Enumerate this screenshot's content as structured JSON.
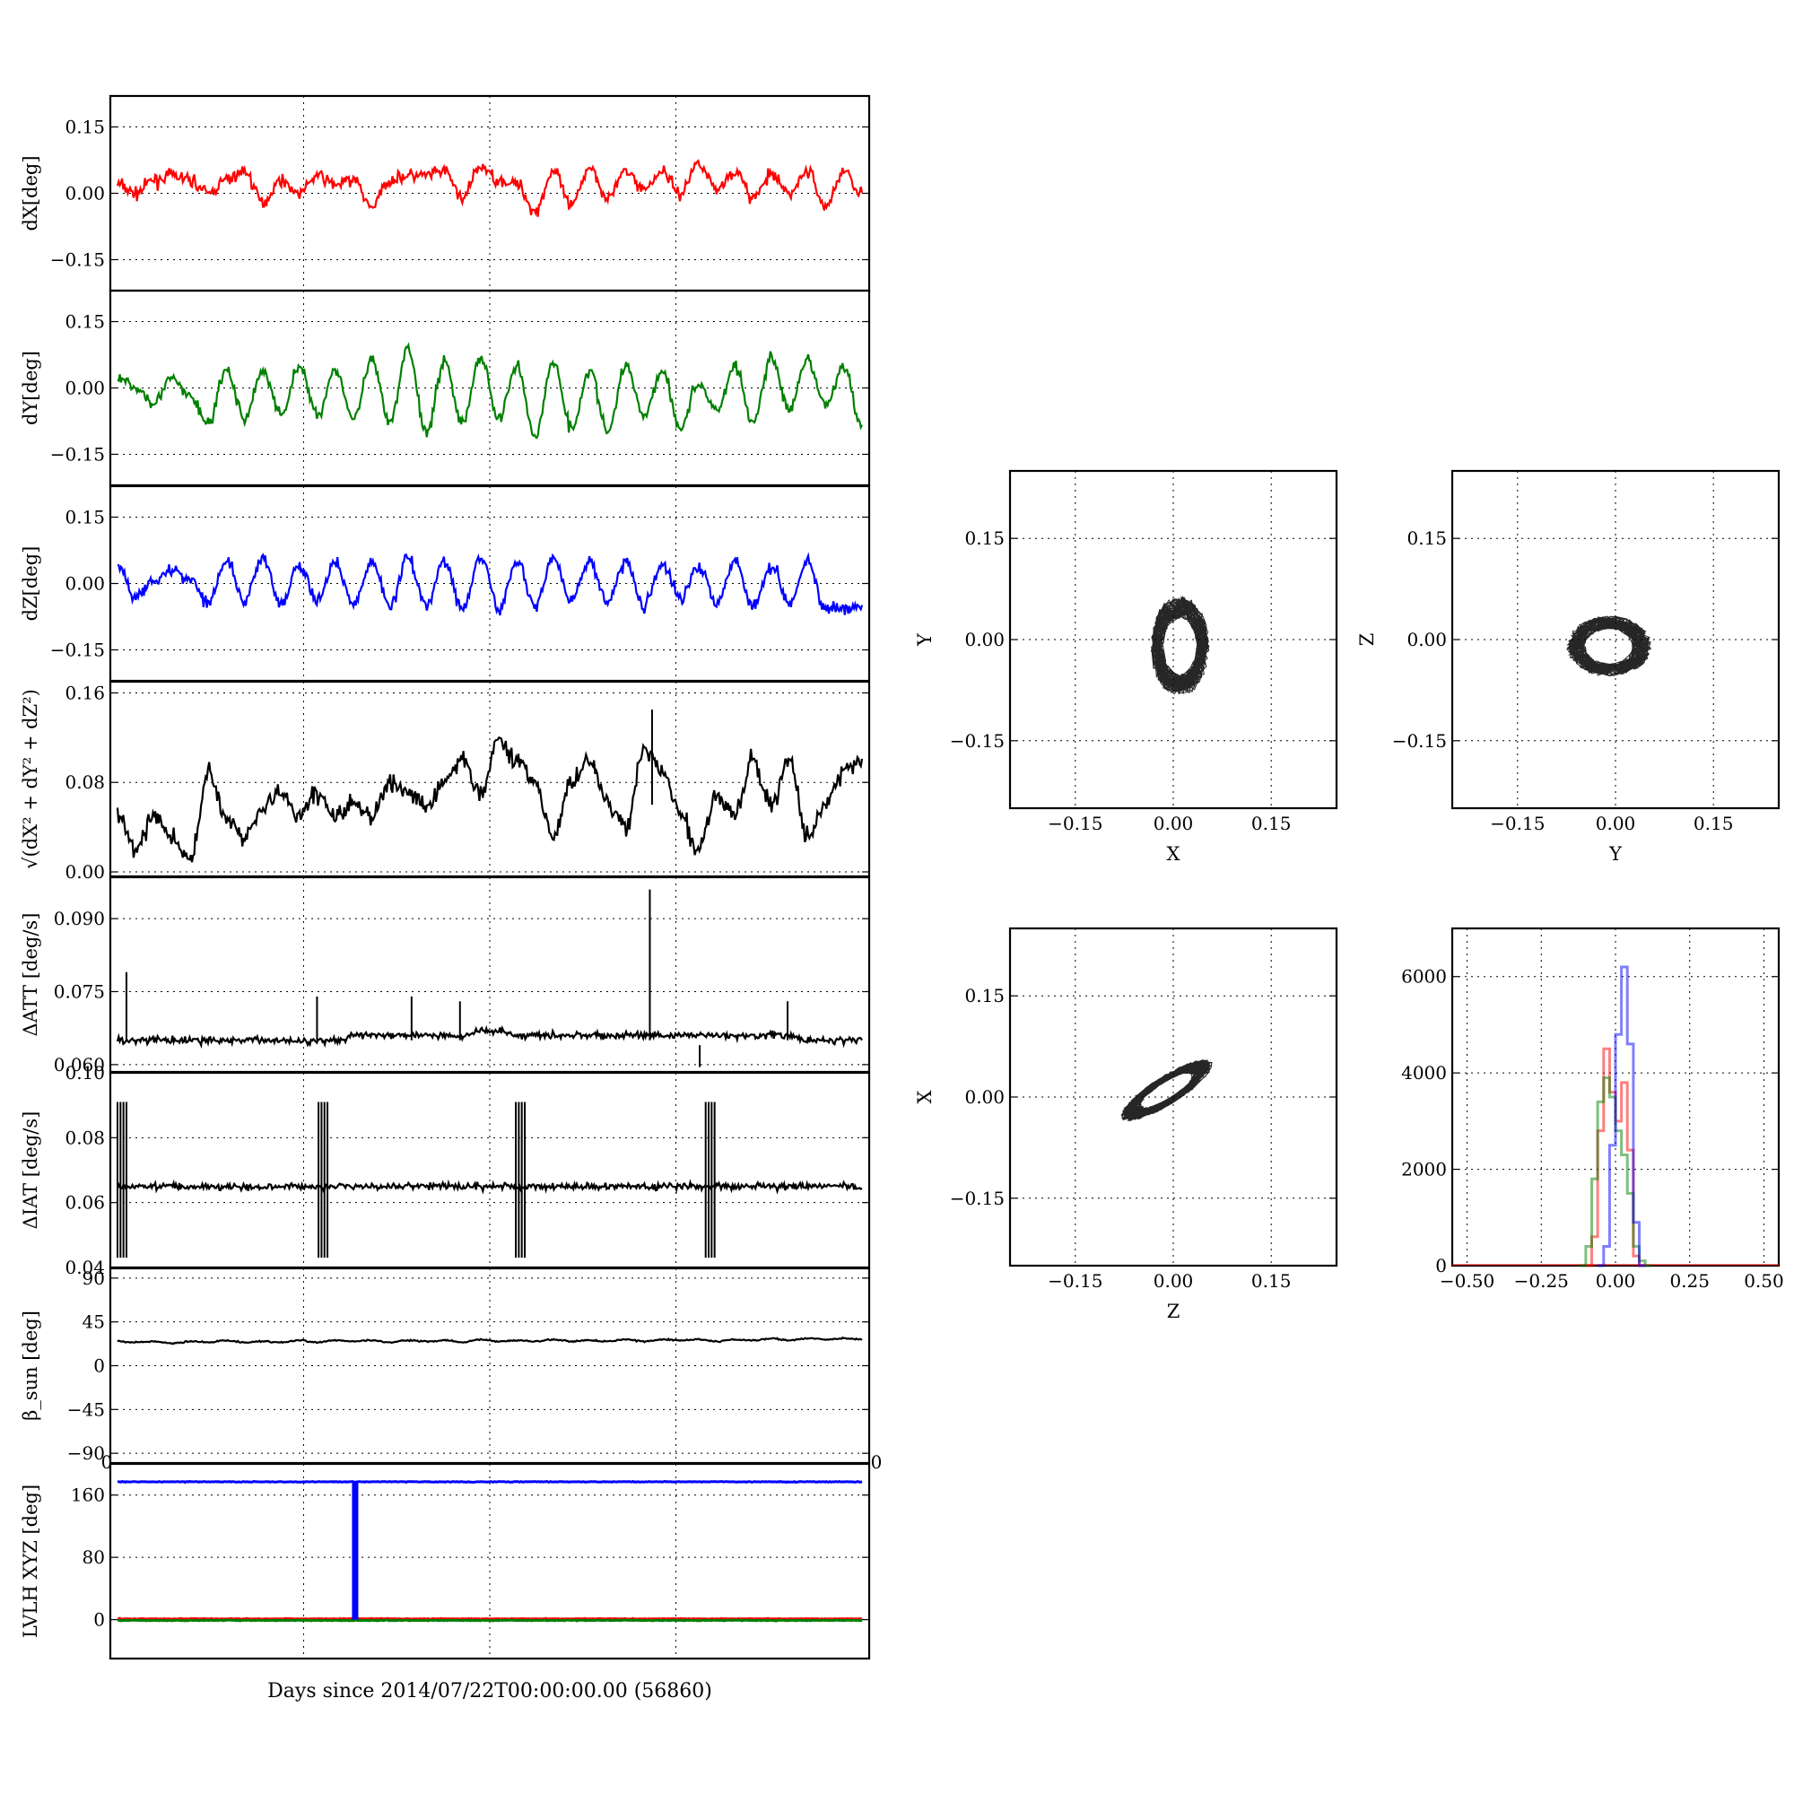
{
  "figure": {
    "xlabel": "Days since 2014/07/22T00:00:00.00 (56860)"
  },
  "chart_data": [
    {
      "id": "dx",
      "type": "line",
      "ylabel": "dX[deg]",
      "color": "#ff0000",
      "xlim": [
        0,
        1
      ],
      "ylim": [
        -0.22,
        0.22
      ],
      "yticks": [
        0.15,
        0.0,
        -0.15
      ],
      "ytick_labels": [
        "0.15",
        "0.00",
        "−0.15"
      ],
      "series": [
        {
          "values": [
            0.02,
            0.0,
            0.03,
            0.04,
            0.03,
            0.0,
            0.03,
            0.05,
            -0.02,
            0.03,
            0.0,
            0.04,
            0.02,
            0.03,
            -0.03,
            0.03,
            0.04,
            0.04,
            0.05,
            -0.01,
            0.06,
            0.03,
            0.02,
            -0.04,
            0.05,
            -0.03,
            0.06,
            -0.01,
            0.05,
            0.01,
            0.05,
            0.0,
            0.07,
            0.01,
            0.05,
            -0.01,
            0.04,
            0.0,
            0.05,
            -0.03,
            0.05,
            0.0
          ]
        }
      ]
    },
    {
      "id": "dy",
      "type": "line",
      "ylabel": "dY[deg]",
      "color": "#008000",
      "xlim": [
        0,
        1
      ],
      "ylim": [
        -0.22,
        0.22
      ],
      "yticks": [
        0.15,
        0.0,
        -0.15
      ],
      "ytick_labels": [
        "0.15",
        "0.00",
        "−0.15"
      ],
      "series": [
        {
          "values": [
            0.02,
            0.0,
            -0.03,
            0.02,
            -0.02,
            -0.08,
            0.04,
            -0.07,
            0.04,
            -0.06,
            0.05,
            -0.06,
            0.04,
            -0.07,
            0.06,
            -0.08,
            0.09,
            -0.1,
            0.06,
            -0.08,
            0.07,
            -0.07,
            0.05,
            -0.11,
            0.06,
            -0.09,
            0.04,
            -0.1,
            0.05,
            -0.06,
            0.04,
            -0.09,
            0.01,
            -0.05,
            0.05,
            -0.08,
            0.07,
            -0.05,
            0.06,
            -0.04,
            0.05,
            -0.09
          ]
        }
      ]
    },
    {
      "id": "dz",
      "type": "line",
      "ylabel": "dZ[deg]",
      "color": "#0000ff",
      "xlim": [
        0,
        1
      ],
      "ylim": [
        -0.22,
        0.22
      ],
      "yticks": [
        0.15,
        0.0,
        -0.15
      ],
      "ytick_labels": [
        "0.15",
        "0.00",
        "−0.15"
      ],
      "series": [
        {
          "values": [
            0.04,
            -0.03,
            0.01,
            0.03,
            0.01,
            -0.04,
            0.05,
            -0.04,
            0.06,
            -0.05,
            0.04,
            -0.04,
            0.05,
            -0.05,
            0.05,
            -0.05,
            0.06,
            -0.05,
            0.05,
            -0.06,
            0.06,
            -0.06,
            0.05,
            -0.05,
            0.06,
            -0.04,
            0.05,
            -0.04,
            0.05,
            -0.05,
            0.04,
            -0.03,
            0.04,
            -0.04,
            0.05,
            -0.05,
            0.04,
            -0.04,
            0.05,
            -0.06,
            -0.06,
            -0.05
          ]
        }
      ]
    },
    {
      "id": "rss",
      "type": "line",
      "ylabel": "√(dX² + dY² + dZ²)",
      "color": "#000000",
      "xlim": [
        0,
        1
      ],
      "ylim": [
        -0.004,
        0.17
      ],
      "yticks": [
        0.16,
        0.08,
        0.0
      ],
      "ytick_labels": [
        "0.16",
        "0.08",
        "0.00"
      ],
      "series": [
        {
          "values": [
            0.05,
            0.02,
            0.05,
            0.03,
            0.01,
            0.09,
            0.05,
            0.03,
            0.06,
            0.07,
            0.05,
            0.07,
            0.05,
            0.06,
            0.05,
            0.08,
            0.07,
            0.06,
            0.08,
            0.1,
            0.07,
            0.12,
            0.1,
            0.08,
            0.03,
            0.08,
            0.1,
            0.06,
            0.04,
            0.11,
            0.09,
            0.05,
            0.02,
            0.07,
            0.05,
            0.1,
            0.06,
            0.1,
            0.03,
            0.06,
            0.09,
            0.1
          ]
        }
      ]
    },
    {
      "id": "datt",
      "type": "line",
      "ylabel": "ΔATT [deg/s]",
      "color": "#000000",
      "xlim": [
        0,
        1
      ],
      "ylim": [
        0.0585,
        0.0985
      ],
      "yticks": [
        0.09,
        0.075,
        0.06
      ],
      "ytick_labels": [
        "0.090",
        "0.075",
        "0.060"
      ],
      "series": [
        {
          "values": [
            0.065,
            0.065,
            0.065,
            0.065,
            0.065,
            0.065,
            0.065,
            0.065,
            0.065,
            0.065,
            0.065,
            0.065,
            0.065,
            0.066,
            0.066,
            0.066,
            0.066,
            0.066,
            0.066,
            0.066,
            0.067,
            0.067,
            0.066,
            0.066,
            0.066,
            0.066,
            0.066,
            0.066,
            0.066,
            0.066,
            0.066,
            0.066,
            0.066,
            0.066,
            0.066,
            0.066,
            0.066,
            0.066,
            0.065,
            0.065,
            0.065,
            0.065
          ]
        }
      ]
    },
    {
      "id": "diat",
      "type": "line",
      "ylabel": "ΔIAT [deg/s]",
      "color": "#000000",
      "xlim": [
        0,
        1
      ],
      "ylim": [
        0.04,
        0.1
      ],
      "yticks": [
        0.1,
        0.08,
        0.06,
        0.04
      ],
      "ytick_labels": [
        "0.10",
        "0.08",
        "0.06",
        "0.04"
      ],
      "series": [
        {
          "values": [
            0.065,
            0.065,
            0.065,
            0.065,
            0.065,
            0.065,
            0.065,
            0.065,
            0.065,
            0.065,
            0.065,
            0.065,
            0.065,
            0.065,
            0.065,
            0.065,
            0.065,
            0.065,
            0.065,
            0.065,
            0.065,
            0.065,
            0.065,
            0.065,
            0.065,
            0.065,
            0.065,
            0.065,
            0.065,
            0.065,
            0.065,
            0.065,
            0.065,
            0.065,
            0.065,
            0.065,
            0.065,
            0.065,
            0.065,
            0.065,
            0.065,
            0.065
          ]
        }
      ]
    },
    {
      "id": "beta",
      "type": "line",
      "ylabel": "β_sun [deg]",
      "color": "#000000",
      "xlim": [
        0,
        1
      ],
      "ylim": [
        -100,
        100
      ],
      "yticks": [
        90,
        45,
        0,
        -45,
        -90
      ],
      "ytick_labels": [
        "90",
        "45",
        "0",
        "−45",
        "−90"
      ],
      "series": [
        {
          "values": [
            25,
            24,
            25,
            23,
            25,
            24,
            26,
            24,
            25,
            24,
            26,
            24,
            26,
            25,
            26,
            24,
            26,
            25,
            26,
            24,
            27,
            25,
            26,
            25,
            27,
            25,
            26,
            25,
            27,
            25,
            27,
            26,
            27,
            25,
            27,
            26,
            28,
            26,
            28,
            27,
            28,
            27
          ]
        }
      ]
    },
    {
      "id": "lvlh",
      "type": "line",
      "ylabel": "LVLH XYZ [deg]",
      "color": "#000000",
      "xlim": [
        0,
        1
      ],
      "ylim": [
        -50,
        200
      ],
      "yticks": [
        160,
        80,
        0
      ],
      "ytick_labels": [
        "160",
        "80",
        "0"
      ],
      "xtick_labels": [
        "0",
        "0"
      ],
      "series": [
        {
          "color": "#0000ff",
          "values": [
            177,
            177,
            177,
            177,
            177,
            177,
            177,
            177,
            177,
            177,
            177,
            177,
            177,
            177,
            177,
            177,
            177,
            177,
            177,
            177,
            177,
            177,
            177,
            177,
            177,
            177,
            177,
            177,
            177,
            177,
            177,
            177,
            177,
            177,
            177,
            177,
            177,
            177,
            177,
            177,
            177,
            177
          ]
        },
        {
          "color": "#ff0000",
          "values": [
            1,
            1,
            1,
            1,
            1,
            1,
            1,
            1,
            1,
            1,
            1,
            1,
            1,
            1,
            1,
            1,
            1,
            1,
            1,
            1,
            1,
            1,
            1,
            1,
            1,
            1,
            1,
            1,
            1,
            1,
            1,
            1,
            1,
            1,
            1,
            1,
            1,
            1,
            1,
            1,
            1,
            1
          ]
        },
        {
          "color": "#008000",
          "values": [
            -1,
            -1,
            -1,
            -1,
            -1,
            -1,
            -1,
            -1,
            -1,
            -1,
            -1,
            -1,
            -1,
            -1,
            -1,
            -1,
            -1,
            -1,
            -1,
            -1,
            -1,
            -1,
            -1,
            -1,
            -1,
            -1,
            -1,
            -1,
            -1,
            -1,
            -1,
            -1,
            -1,
            -1,
            -1,
            -1,
            -1,
            -1,
            -1,
            -1,
            -1,
            -1
          ]
        }
      ]
    },
    {
      "id": "xy",
      "type": "scatter",
      "xlabel": "X",
      "ylabel": "Y",
      "color": "#000000",
      "xlim": [
        -0.25,
        0.25
      ],
      "ylim": [
        -0.25,
        0.25
      ],
      "xticks": [
        -0.15,
        0.0,
        0.15
      ],
      "xtick_labels": [
        "−0.15",
        "0.00",
        "0.15"
      ],
      "yticks": [
        0.15,
        0.0,
        -0.15
      ],
      "ytick_labels": [
        "0.15",
        "0.00",
        "−0.15"
      ],
      "center": [
        0.01,
        -0.01
      ],
      "spread": [
        0.045,
        0.075
      ]
    },
    {
      "id": "yz",
      "type": "scatter",
      "xlabel": "Y",
      "ylabel": "Z",
      "color": "#000000",
      "xlim": [
        -0.25,
        0.25
      ],
      "ylim": [
        -0.25,
        0.25
      ],
      "xticks": [
        -0.15,
        0.0,
        0.15
      ],
      "xtick_labels": [
        "−0.15",
        "0.00",
        "0.15"
      ],
      "yticks": [
        0.15,
        0.0,
        -0.15
      ],
      "ytick_labels": [
        "0.15",
        "0.00",
        "−0.15"
      ],
      "center": [
        -0.01,
        -0.01
      ],
      "spread": [
        0.065,
        0.045
      ]
    },
    {
      "id": "zx",
      "type": "scatter",
      "xlabel": "Z",
      "ylabel": "X",
      "color": "#000000",
      "xlim": [
        -0.25,
        0.25
      ],
      "ylim": [
        -0.25,
        0.25
      ],
      "xticks": [
        -0.15,
        0.0,
        0.15
      ],
      "xtick_labels": [
        "−0.15",
        "0.00",
        "0.15"
      ],
      "yticks": [
        0.15,
        0.0,
        -0.15
      ],
      "ytick_labels": [
        "0.15",
        "0.00",
        "−0.15"
      ],
      "center": [
        -0.01,
        0.01
      ],
      "spread": [
        0.07,
        0.035
      ],
      "slope": 0.55
    },
    {
      "id": "hist",
      "type": "histogram",
      "color": "#000000",
      "xlim": [
        -0.55,
        0.55
      ],
      "ylim": [
        0,
        7000
      ],
      "xticks": [
        -0.5,
        -0.25,
        0.0,
        0.25,
        0.5
      ],
      "xtick_labels": [
        "−0.50",
        "−0.25",
        "0.00",
        "0.25",
        "0.50"
      ],
      "yticks": [
        6000,
        4000,
        2000,
        0
      ],
      "ytick_labels": [
        "6000",
        "4000",
        "2000",
        "0"
      ],
      "series": [
        {
          "color": "#ff0000",
          "bins": [
            -0.1,
            -0.08,
            -0.06,
            -0.04,
            -0.02,
            0.0,
            0.02,
            0.04,
            0.06,
            0.08
          ],
          "counts": [
            0,
            600,
            2800,
            4500,
            3600,
            3000,
            3800,
            2400,
            200,
            0
          ]
        },
        {
          "color": "#008000",
          "bins": [
            -0.12,
            -0.1,
            -0.08,
            -0.06,
            -0.04,
            -0.02,
            0.0,
            0.02,
            0.04,
            0.06,
            0.08,
            0.1
          ],
          "counts": [
            0,
            400,
            1800,
            3400,
            3900,
            3500,
            2800,
            2300,
            1500,
            400,
            100,
            0
          ]
        },
        {
          "color": "#0000ff",
          "bins": [
            -0.06,
            -0.04,
            -0.02,
            0.0,
            0.02,
            0.04,
            0.06,
            0.08
          ],
          "counts": [
            0,
            400,
            2500,
            4800,
            6200,
            4600,
            900,
            0
          ]
        }
      ]
    }
  ]
}
